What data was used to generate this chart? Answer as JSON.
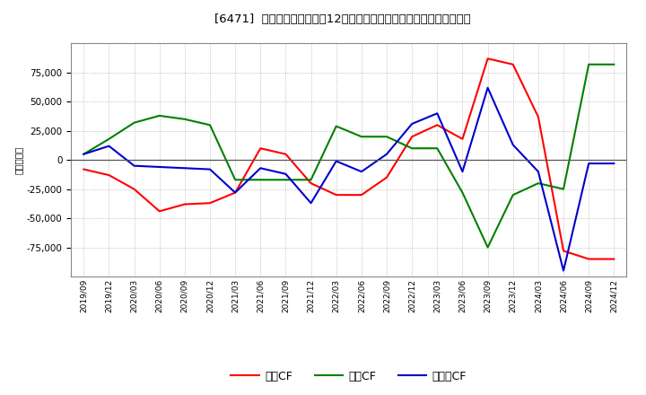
{
  "title": "[6471]  キャッシュフローの12か月移動合計の対前年同期増減額の推移",
  "ylabel": "（百万円）",
  "background_color": "#ffffff",
  "plot_bg_color": "#ffffff",
  "grid_color": "#b0b0b0",
  "xlabels": [
    "2019/09",
    "2019/12",
    "2020/03",
    "2020/06",
    "2020/09",
    "2020/12",
    "2021/03",
    "2021/06",
    "2021/09",
    "2021/12",
    "2022/03",
    "2022/06",
    "2022/09",
    "2022/12",
    "2023/03",
    "2023/06",
    "2023/09",
    "2023/12",
    "2024/03",
    "2024/06",
    "2024/09",
    "2024/12"
  ],
  "eigyo_cf": [
    -8000,
    -13000,
    -25000,
    -44000,
    -38000,
    -37000,
    -28000,
    10000,
    5000,
    -20000,
    -30000,
    -30000,
    -15000,
    20000,
    30000,
    18000,
    87000,
    82000,
    37000,
    -78000,
    -85000,
    -85000
  ],
  "toshi_cf": [
    5000,
    18000,
    32000,
    38000,
    35000,
    30000,
    -17000,
    -17000,
    -17000,
    -17000,
    29000,
    20000,
    20000,
    10000,
    10000,
    -28000,
    -75000,
    -30000,
    -20000,
    -25000,
    82000,
    82000
  ],
  "free_cf": [
    5000,
    12000,
    -5000,
    -6000,
    -7000,
    -8000,
    -28000,
    -7000,
    -12000,
    -37000,
    -1000,
    -10000,
    5000,
    31000,
    40000,
    -10000,
    62000,
    13000,
    -10000,
    -95000,
    -3000,
    -3000
  ],
  "eigyo_color": "#ff0000",
  "toshi_color": "#008000",
  "free_color": "#0000cd",
  "ylim": [
    -100000,
    100000
  ],
  "yticks": [
    -75000,
    -50000,
    -25000,
    0,
    25000,
    50000,
    75000
  ],
  "legend_labels": [
    "営業CF",
    "投資CF",
    "フリーCF"
  ]
}
